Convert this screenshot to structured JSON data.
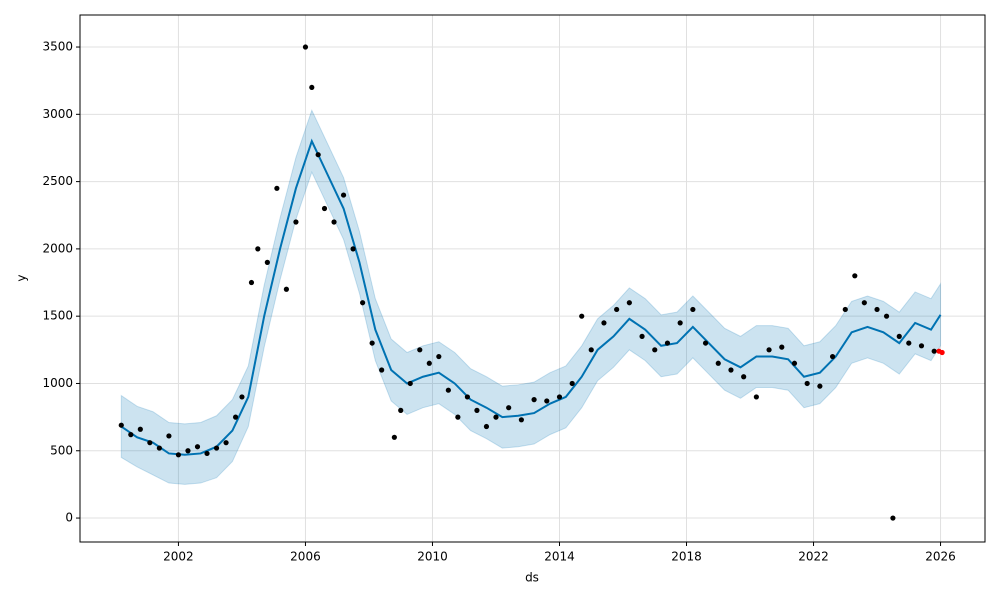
{
  "chart_data": {
    "type": "forecast",
    "xlabel": "ds",
    "ylabel": "y",
    "xlim": [
      1998.9,
      2027.4
    ],
    "ylim": [
      -178,
      3738
    ],
    "xticks": [
      2002,
      2006,
      2010,
      2014,
      2018,
      2022,
      2026
    ],
    "yticks": [
      0,
      500,
      1000,
      1500,
      2000,
      2500,
      3000,
      3500
    ],
    "grid": true,
    "series": [
      {
        "type": "line",
        "color": "#0072b2",
        "band_opacity": 0.2,
        "x": [
          2000.2,
          2000.7,
          2001.2,
          2001.7,
          2002.2,
          2002.7,
          2003.2,
          2003.7,
          2004.2,
          2004.7,
          2005.2,
          2005.7,
          2006.2,
          2006.7,
          2007.2,
          2007.7,
          2008.2,
          2008.7,
          2009.2,
          2009.7,
          2010.2,
          2010.7,
          2011.2,
          2011.7,
          2012.2,
          2012.7,
          2013.2,
          2013.7,
          2014.2,
          2014.7,
          2015.2,
          2015.7,
          2016.2,
          2016.7,
          2017.2,
          2017.7,
          2018.2,
          2018.7,
          2019.2,
          2019.7,
          2020.2,
          2020.7,
          2021.2,
          2021.7,
          2022.2,
          2022.7,
          2023.2,
          2023.7,
          2024.2,
          2024.7,
          2025.2,
          2025.7,
          2026.0
        ],
        "values": [
          680,
          600,
          560,
          480,
          470,
          480,
          530,
          650,
          900,
          1500,
          2000,
          2450,
          2800,
          2550,
          2300,
          1900,
          1400,
          1100,
          1000,
          1050,
          1080,
          1000,
          880,
          820,
          750,
          760,
          780,
          850,
          900,
          1050,
          1250,
          1350,
          1480,
          1400,
          1280,
          1300,
          1420,
          1300,
          1180,
          1120,
          1200,
          1200,
          1180,
          1050,
          1080,
          1200,
          1380,
          1420,
          1380,
          1300,
          1450,
          1400,
          1510
        ],
        "lower": [
          450,
          380,
          320,
          260,
          250,
          260,
          300,
          420,
          680,
          1270,
          1770,
          2220,
          2570,
          2320,
          2070,
          1670,
          1170,
          870,
          770,
          820,
          850,
          770,
          650,
          590,
          520,
          530,
          550,
          620,
          670,
          820,
          1020,
          1120,
          1250,
          1170,
          1050,
          1070,
          1190,
          1070,
          950,
          890,
          970,
          970,
          950,
          820,
          850,
          970,
          1150,
          1190,
          1150,
          1070,
          1220,
          1170,
          1280
        ],
        "upper": [
          910,
          830,
          790,
          710,
          700,
          710,
          760,
          880,
          1130,
          1730,
          2230,
          2680,
          3030,
          2780,
          2530,
          2130,
          1630,
          1330,
          1230,
          1280,
          1310,
          1230,
          1110,
          1050,
          980,
          990,
          1010,
          1080,
          1130,
          1280,
          1480,
          1580,
          1710,
          1630,
          1510,
          1530,
          1650,
          1530,
          1410,
          1350,
          1430,
          1430,
          1410,
          1280,
          1310,
          1430,
          1610,
          1650,
          1610,
          1530,
          1680,
          1630,
          1740
        ]
      },
      {
        "type": "scatter",
        "color": "#000000",
        "x": [
          2000.2,
          2000.5,
          2000.8,
          2001.1,
          2001.4,
          2001.7,
          2002.0,
          2002.3,
          2002.6,
          2002.9,
          2003.2,
          2003.5,
          2003.8,
          2004.0,
          2004.3,
          2004.5,
          2004.8,
          2005.1,
          2005.4,
          2005.7,
          2006.0,
          2006.2,
          2006.4,
          2006.6,
          2006.9,
          2007.2,
          2007.5,
          2007.8,
          2008.1,
          2008.4,
          2008.8,
          2009.0,
          2009.3,
          2009.6,
          2009.9,
          2010.2,
          2010.5,
          2010.8,
          2011.1,
          2011.4,
          2011.7,
          2012.0,
          2012.4,
          2012.8,
          2013.2,
          2013.6,
          2014.0,
          2014.4,
          2014.7,
          2015.0,
          2015.4,
          2015.8,
          2016.2,
          2016.6,
          2017.0,
          2017.4,
          2017.8,
          2018.2,
          2018.6,
          2019.0,
          2019.4,
          2019.8,
          2020.2,
          2020.6,
          2021.0,
          2021.4,
          2021.8,
          2022.2,
          2022.6,
          2023.0,
          2023.3,
          2023.6,
          2024.0,
          2024.3,
          2024.5,
          2024.7,
          2025.0,
          2025.4,
          2025.8
        ],
        "values": [
          690,
          620,
          660,
          560,
          520,
          610,
          470,
          500,
          530,
          480,
          520,
          560,
          750,
          900,
          1750,
          2000,
          1900,
          2450,
          1700,
          2200,
          3500,
          3200,
          2700,
          2300,
          2200,
          2400,
          2000,
          1600,
          1300,
          1100,
          600,
          800,
          1000,
          1250,
          1150,
          1200,
          950,
          750,
          900,
          800,
          680,
          750,
          820,
          730,
          880,
          870,
          900,
          1000,
          1500,
          1250,
          1450,
          1550,
          1600,
          1350,
          1250,
          1300,
          1450,
          1550,
          1300,
          1150,
          1100,
          1050,
          900,
          1250,
          1270,
          1150,
          1000,
          980,
          1200,
          1550,
          1800,
          1600,
          1550,
          1500,
          0,
          1350,
          1300,
          1280,
          1240
        ]
      },
      {
        "type": "scatter",
        "color": "#ff0000",
        "x": [
          2025.95,
          2026.05
        ],
        "values": [
          1240,
          1230
        ]
      }
    ]
  }
}
